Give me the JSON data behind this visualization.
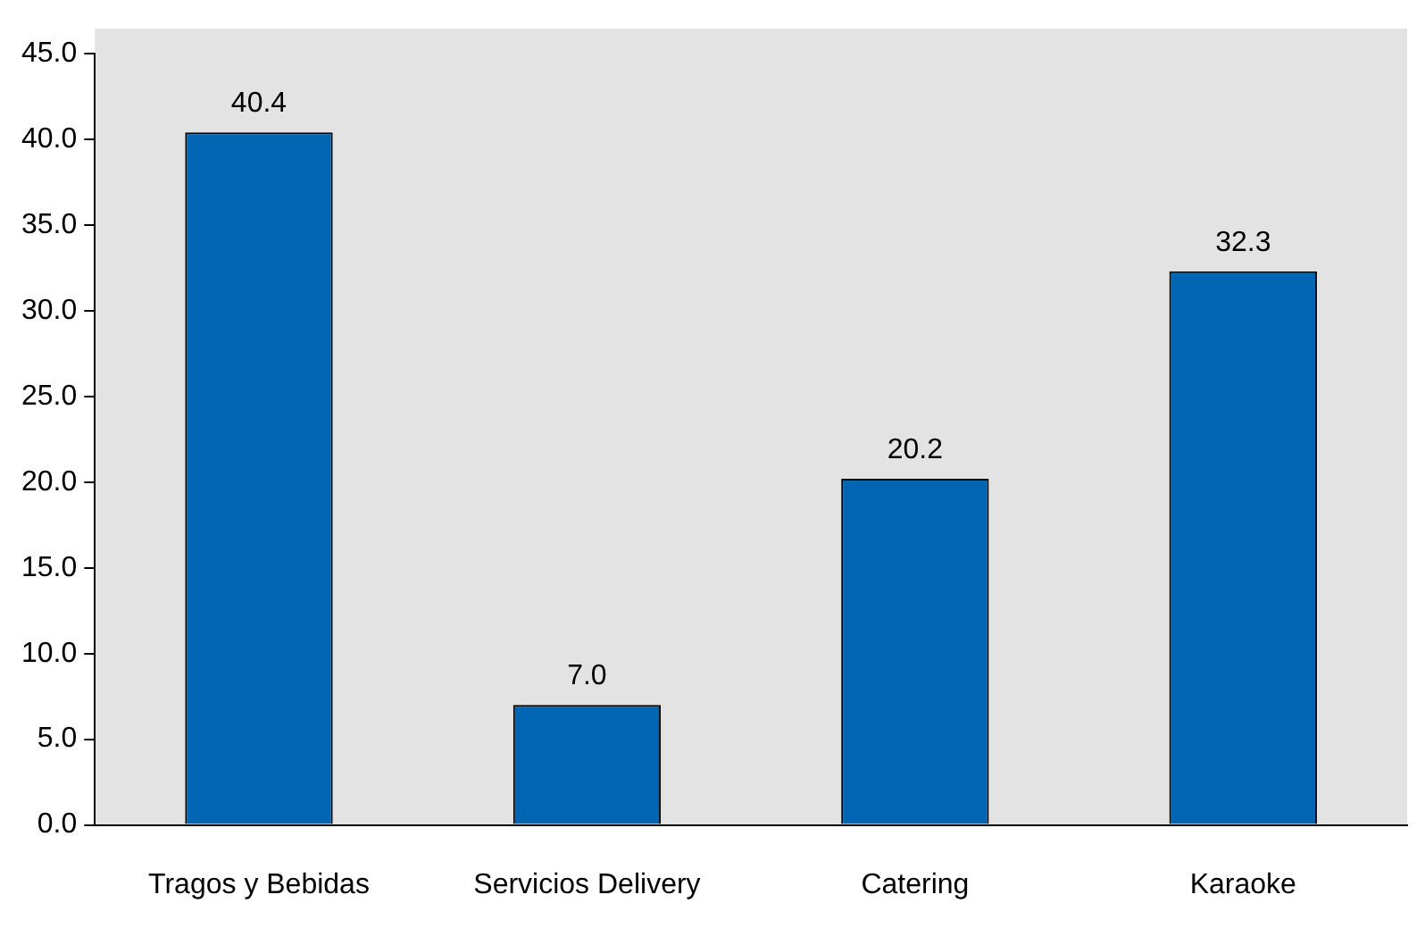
{
  "chart_data": {
    "type": "bar",
    "categories": [
      "Tragos y Bebidas",
      "Servicios Delivery",
      "Catering",
      "Karaoke"
    ],
    "series": [
      {
        "color": "#0066b3",
        "values": [
          40.4,
          7.0,
          20.2,
          32.3
        ],
        "value_labels": [
          "40.4",
          "7.0",
          "20.2",
          "32.3"
        ]
      }
    ],
    "ylim": [
      0,
      45
    ],
    "yticks": [
      {
        "value": 0,
        "label": "0.0"
      },
      {
        "value": 5,
        "label": "5.0"
      },
      {
        "value": 10,
        "label": "10.0"
      },
      {
        "value": 15,
        "label": "15.0"
      },
      {
        "value": 20,
        "label": "20.0"
      },
      {
        "value": 25,
        "label": "25.0"
      },
      {
        "value": 30,
        "label": "30.0"
      },
      {
        "value": 35,
        "label": "35.0"
      },
      {
        "value": 40,
        "label": "40.0"
      },
      {
        "value": 45,
        "label": "45.0"
      }
    ],
    "grid": false,
    "legend": false
  }
}
